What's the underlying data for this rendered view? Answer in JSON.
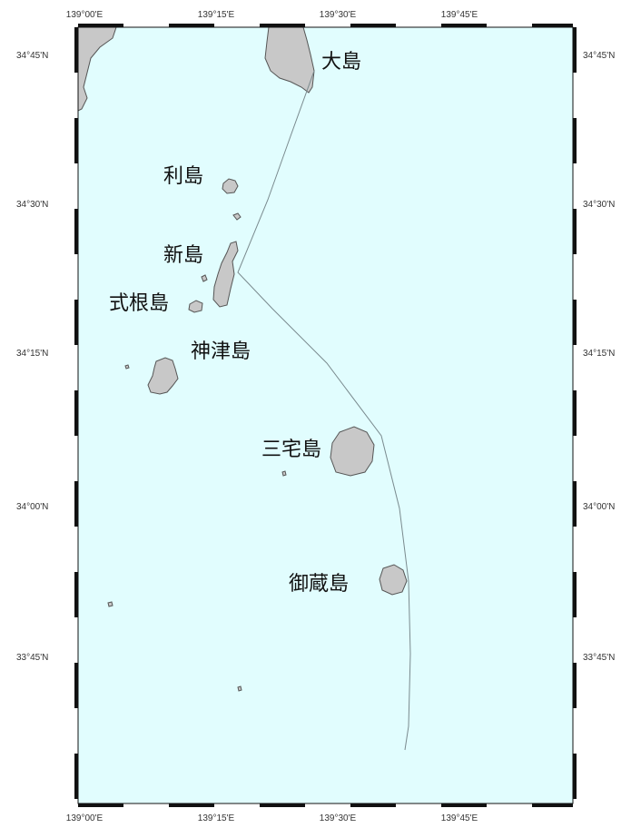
{
  "map": {
    "colors": {
      "sea": "#e1fdfe",
      "land": "#c8c8c8",
      "coast": "#555555",
      "route": "#7a8a8e",
      "frame": "#111111"
    },
    "top_ticks": [
      "139°00'E",
      "139°15'E",
      "139°30'E",
      "139°45'E"
    ],
    "bottom_ticks": [
      "139°00'E",
      "139°15'E",
      "139°30'E",
      "139°45'E"
    ],
    "left_ticks": [
      "34°45'N",
      "34°30'N",
      "34°15'N",
      "34°00'N",
      "33°45'N"
    ],
    "right_ticks": [
      "34°45'N",
      "34°30'N",
      "34°15'N",
      "34°00'N",
      "33°45'N"
    ],
    "labels": {
      "oshima": "大島",
      "toshima": "利島",
      "niijima": "新島",
      "shikinejima": "式根島",
      "kozushima": "神津島",
      "miyakejima": "三宅島",
      "mikurajima": "御蔵島"
    }
  }
}
